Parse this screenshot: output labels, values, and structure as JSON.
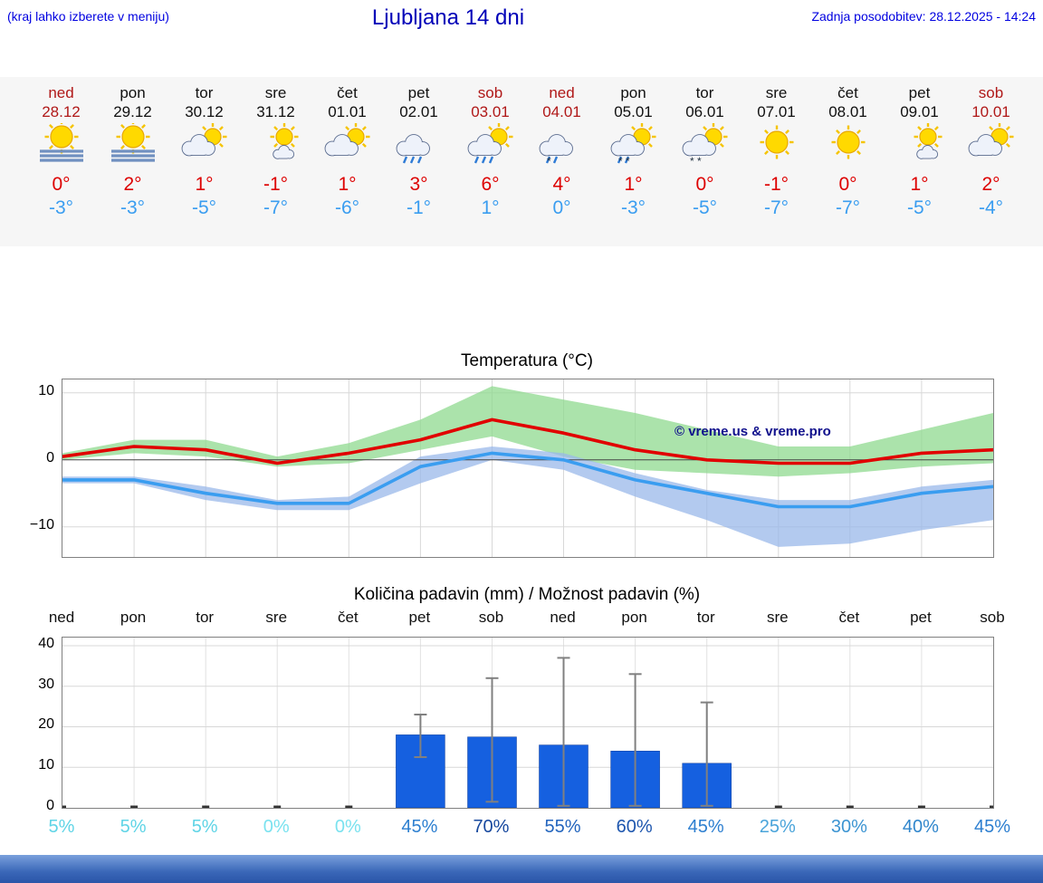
{
  "header": {
    "left_note": "(kraj lahko izberete v meniju)",
    "title": "Ljubljana 14 dni",
    "last_update": "Zadnja posodobitev: 28.12.2025 - 14:24"
  },
  "colors": {
    "accent_blue": "#0000e0",
    "high_temp": "#dd0000",
    "low_temp": "#3a9df0",
    "weekend_red": "#b01818",
    "strip_bg": "#f6f6f6"
  },
  "forecast": {
    "days": [
      {
        "name": "ned",
        "date": "28.12",
        "weekend": true,
        "icon_name": "sun-fog",
        "icon": {
          "sun": true,
          "fog": true
        },
        "high": "0°",
        "low": "-3°"
      },
      {
        "name": "pon",
        "date": "29.12",
        "weekend": false,
        "icon_name": "sun-fog",
        "icon": {
          "sun": true,
          "fog": true
        },
        "high": "2°",
        "low": "-3°"
      },
      {
        "name": "tor",
        "date": "30.12",
        "weekend": false,
        "icon_name": "partly-cloudy",
        "icon": {
          "sun": true,
          "cloud": "big"
        },
        "high": "1°",
        "low": "-5°"
      },
      {
        "name": "sre",
        "date": "31.12",
        "weekend": false,
        "icon_name": "mostly-sunny",
        "icon": {
          "sun": true,
          "cloud": "small"
        },
        "high": "-1°",
        "low": "-7°"
      },
      {
        "name": "čet",
        "date": "01.01",
        "weekend": false,
        "icon_name": "partly-cloudy",
        "icon": {
          "sun": true,
          "cloud": "big"
        },
        "high": "1°",
        "low": "-6°"
      },
      {
        "name": "pet",
        "date": "02.01",
        "weekend": false,
        "icon_name": "rain-showers",
        "icon": {
          "cloud": "big",
          "rain": 3
        },
        "high": "3°",
        "low": "-1°"
      },
      {
        "name": "sob",
        "date": "03.01",
        "weekend": true,
        "icon_name": "sun-rain-showers",
        "icon": {
          "sun": true,
          "cloud": "big",
          "rain": 3
        },
        "high": "6°",
        "low": "1°"
      },
      {
        "name": "ned",
        "date": "04.01",
        "weekend": true,
        "icon_name": "sleet-showers",
        "icon": {
          "cloud": "big",
          "rain": 2,
          "snow": 1
        },
        "high": "4°",
        "low": "0°"
      },
      {
        "name": "pon",
        "date": "05.01",
        "weekend": false,
        "icon_name": "sleet-showers-sun",
        "icon": {
          "sun": true,
          "cloud": "big",
          "rain": 2,
          "snow": 2
        },
        "high": "1°",
        "low": "-3°"
      },
      {
        "name": "tor",
        "date": "06.01",
        "weekend": false,
        "icon_name": "snow-showers-sun",
        "icon": {
          "sun": true,
          "cloud": "big",
          "snow": 2
        },
        "high": "0°",
        "low": "-5°"
      },
      {
        "name": "sre",
        "date": "07.01",
        "weekend": false,
        "icon_name": "sunny",
        "icon": {
          "sun": true
        },
        "high": "-1°",
        "low": "-7°"
      },
      {
        "name": "čet",
        "date": "08.01",
        "weekend": false,
        "icon_name": "sunny",
        "icon": {
          "sun": true
        },
        "high": "0°",
        "low": "-7°"
      },
      {
        "name": "pet",
        "date": "09.01",
        "weekend": false,
        "icon_name": "mostly-sunny",
        "icon": {
          "sun": true,
          "cloud": "small"
        },
        "high": "1°",
        "low": "-5°"
      },
      {
        "name": "sob",
        "date": "10.01",
        "weekend": true,
        "icon_name": "partly-cloudy",
        "icon": {
          "sun": true,
          "cloud": "big"
        },
        "high": "2°",
        "low": "-4°"
      }
    ]
  },
  "chart_data": [
    {
      "type": "line",
      "title": "Temperatura (°C)",
      "x_labels": [
        "ned",
        "pon",
        "tor",
        "sre",
        "čet",
        "pet",
        "sob",
        "ned",
        "pon",
        "tor",
        "sre",
        "čet",
        "pet",
        "sob"
      ],
      "ylim": [
        -14.5,
        12
      ],
      "yticks": [
        10,
        0,
        -10
      ],
      "grid": true,
      "legend_position": "none",
      "watermark": "© vreme.us & vreme.pro",
      "series": [
        {
          "name": "max-temperature",
          "color": "#e10000",
          "values": [
            0.5,
            2,
            1.5,
            -0.5,
            1,
            3,
            6,
            4,
            1.5,
            0,
            -0.5,
            -0.5,
            1,
            1.5
          ]
        },
        {
          "name": "min-temperature",
          "color": "#3a9df0",
          "values": [
            -3,
            -3,
            -5,
            -6.5,
            -6.5,
            -1,
            1,
            0,
            -3,
            -5,
            -7,
            -7,
            -5,
            -4
          ]
        }
      ],
      "bands": [
        {
          "name": "max-range",
          "color": "#8fd98f",
          "opacity": 0.75,
          "upper": [
            1,
            3,
            3,
            0.5,
            2.5,
            6,
            11,
            9,
            7,
            4.5,
            2,
            2,
            4.5,
            7
          ],
          "lower": [
            0,
            1,
            0.5,
            -1,
            -0.5,
            1.5,
            3.5,
            0.5,
            -1.5,
            -2,
            -2.5,
            -2,
            -1,
            -0.5
          ]
        },
        {
          "name": "min-range",
          "color": "#9ab8ea",
          "opacity": 0.75,
          "upper": [
            -2.5,
            -2.5,
            -4,
            -6,
            -5.5,
            0.5,
            2,
            1,
            -2,
            -4.5,
            -6,
            -6,
            -4,
            -3
          ],
          "lower": [
            -3.5,
            -3.5,
            -6,
            -7.5,
            -7.5,
            -3.5,
            0,
            -1.5,
            -5.5,
            -9,
            -13,
            -12.5,
            -10.5,
            -9
          ]
        }
      ]
    },
    {
      "type": "bar",
      "title": "Količina padavin (mm) / Možnost padavin (%)",
      "x_labels": [
        "ned",
        "pon",
        "tor",
        "sre",
        "čet",
        "pet",
        "sob",
        "ned",
        "pon",
        "tor",
        "sre",
        "čet",
        "pet",
        "sob"
      ],
      "ylim": [
        0,
        42
      ],
      "yticks": [
        0,
        10,
        20,
        30,
        40
      ],
      "bar_color": "#1560e0",
      "values": [
        0,
        0,
        0,
        0,
        0,
        18,
        17.5,
        15.5,
        14,
        11,
        0,
        0,
        0,
        0
      ],
      "whisker_low": [
        null,
        null,
        null,
        null,
        null,
        12.5,
        1.5,
        0.5,
        0.5,
        0.5,
        null,
        null,
        null,
        null
      ],
      "whisker_high": [
        null,
        null,
        null,
        null,
        null,
        23,
        32,
        37,
        33,
        26,
        null,
        null,
        null,
        null
      ],
      "percent_labels": [
        "5%",
        "5%",
        "5%",
        "0%",
        "0%",
        "45%",
        "70%",
        "55%",
        "60%",
        "45%",
        "25%",
        "30%",
        "40%",
        "45%"
      ],
      "percent_colors": [
        "#5fd4e6",
        "#5fd4e6",
        "#5fd4e6",
        "#7ae2ef",
        "#7ae2ef",
        "#2d7fd0",
        "#17489e",
        "#2264bd",
        "#1d56ae",
        "#2d7fd0",
        "#4aa4da",
        "#3c94d2",
        "#3086cc",
        "#2d7fd0"
      ]
    }
  ]
}
